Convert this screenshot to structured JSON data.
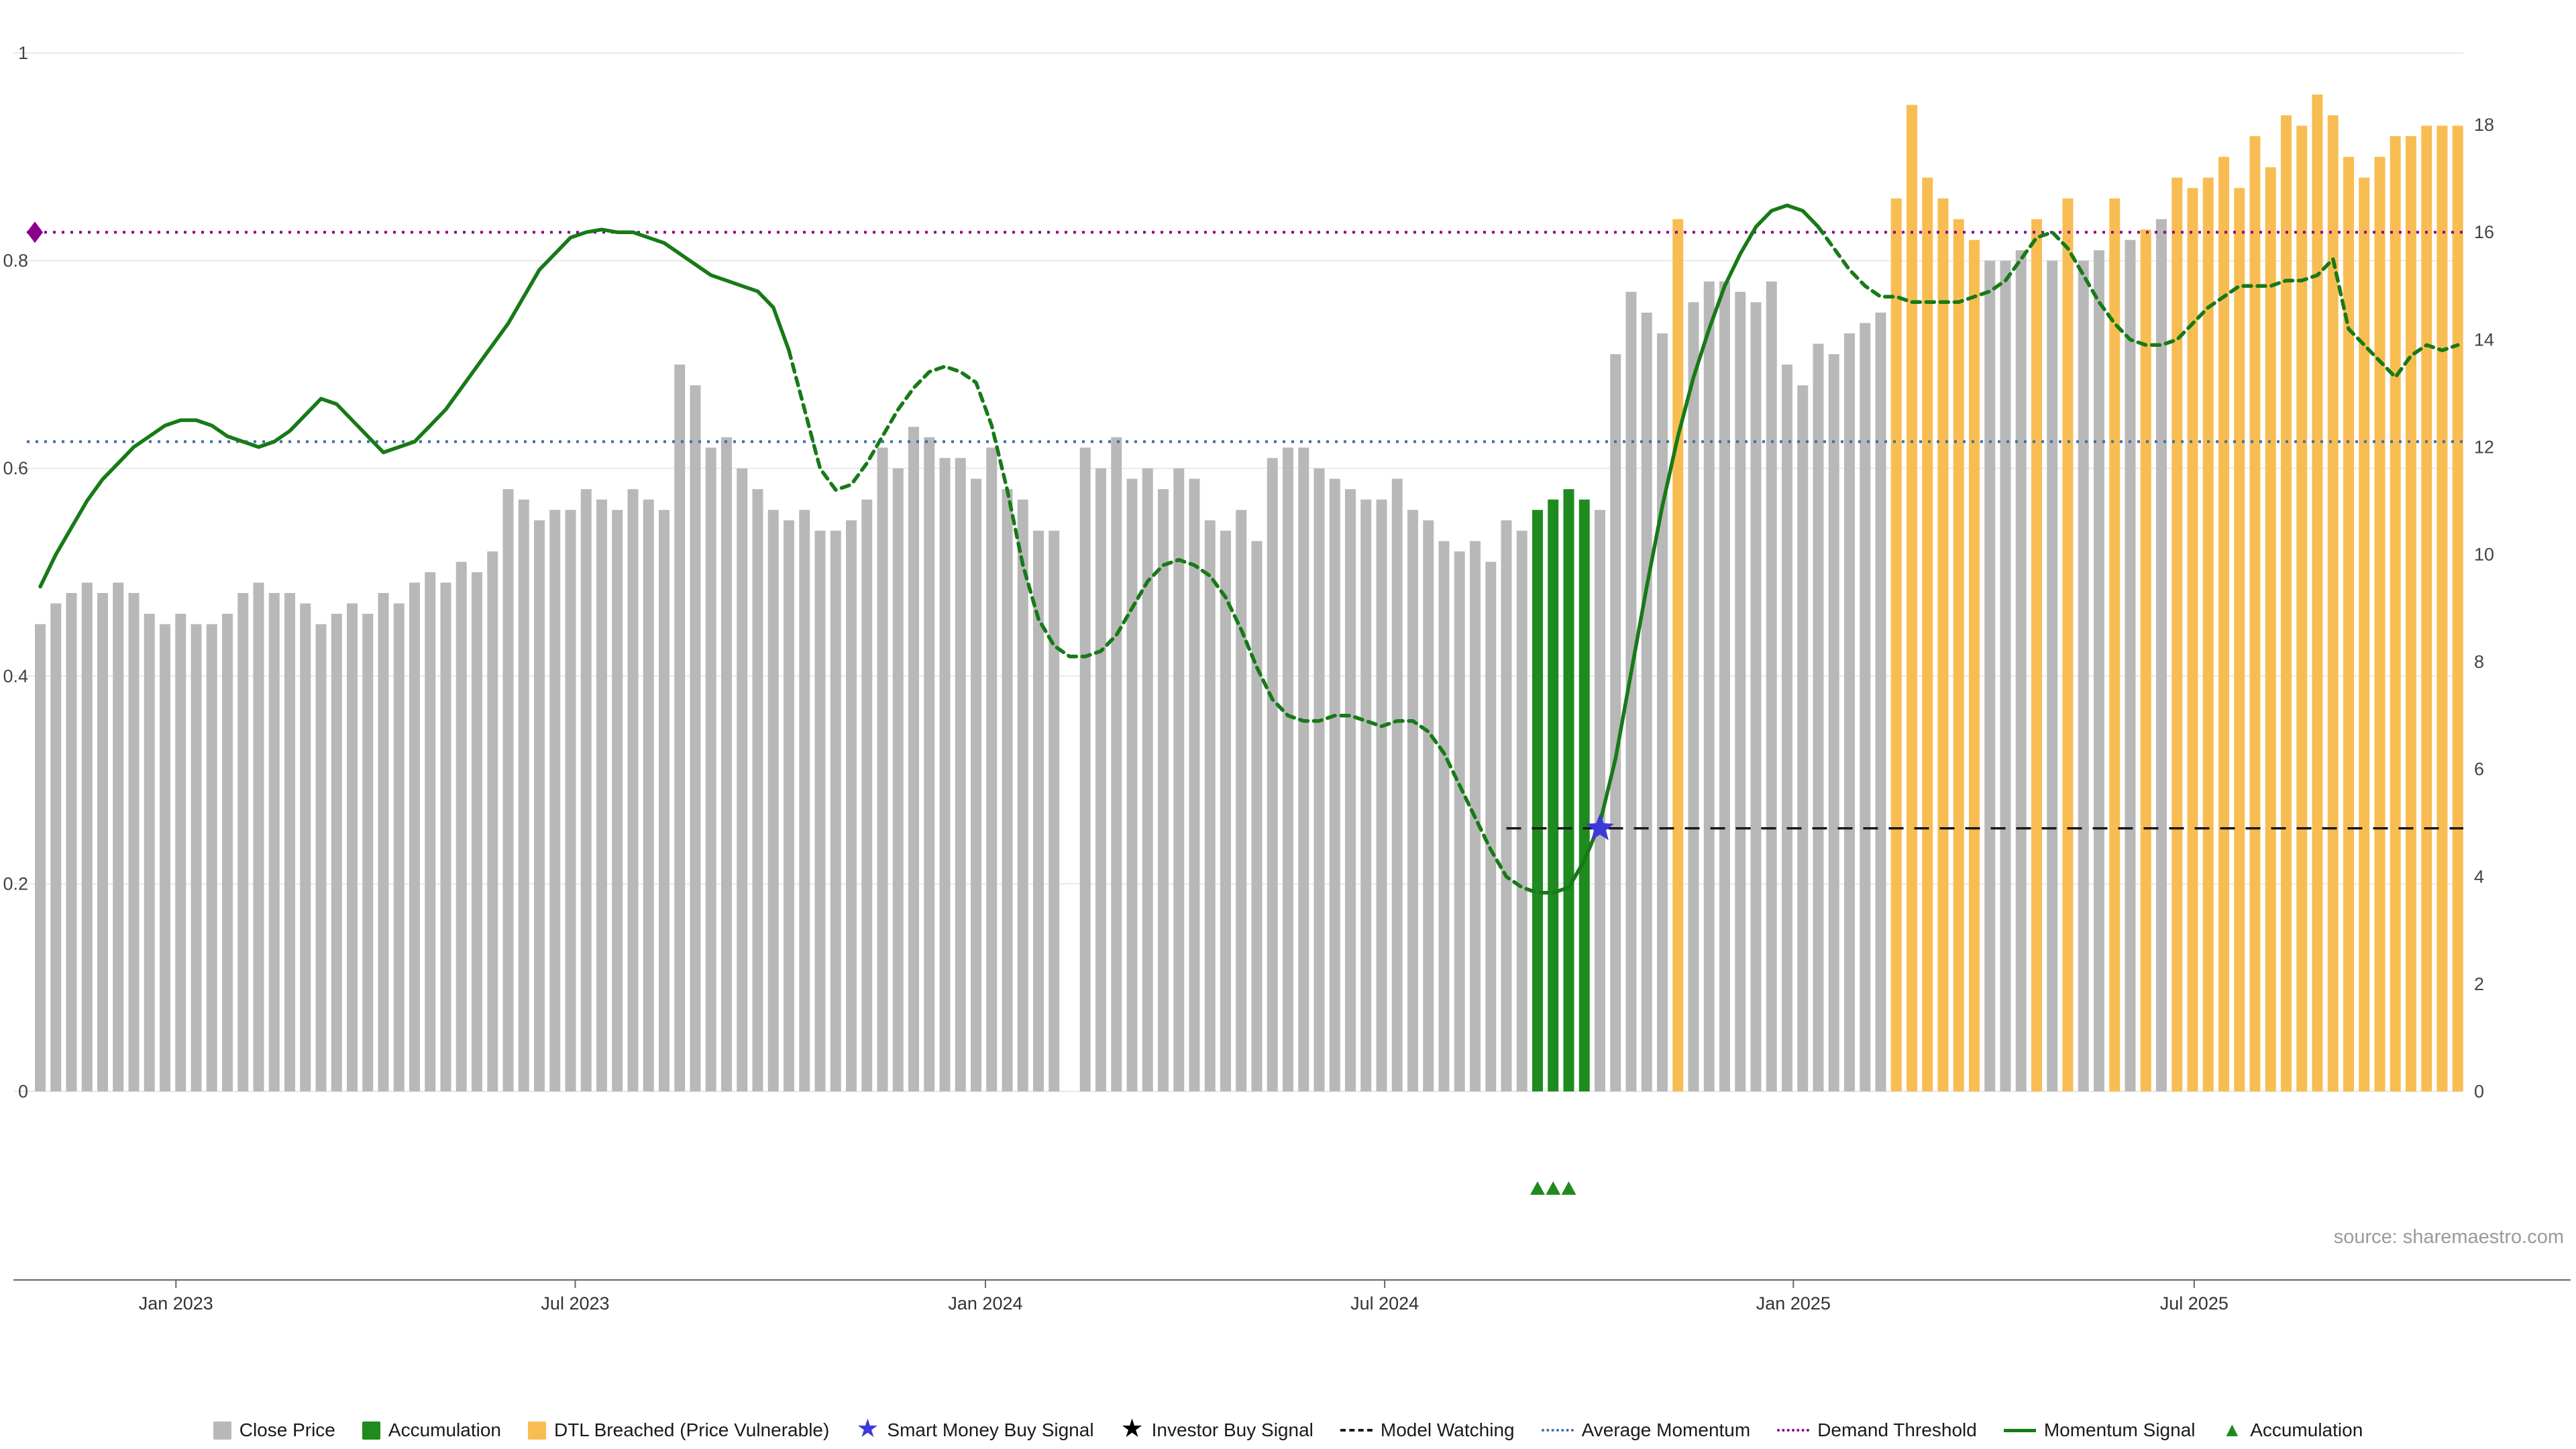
{
  "source": {
    "text": "source: sharemaestro.com"
  },
  "colors": {
    "close_price": "#b8b8b8",
    "accumulation": "#1f8b1f",
    "dtl_breached": "#f8bd52",
    "momentum": "#177a17",
    "average_momentum": "#3d6fa8",
    "demand_threshold": "#8b008b",
    "model_watching": "#1a1a1a",
    "smart_money_star": "#3a3ad9",
    "investor_star": "#000000",
    "accumulation_marker": "#1f8b1f",
    "grid": "#e9e9e9",
    "axis_text": "#444444"
  },
  "chart_data": {
    "type": "bar+line",
    "title": "",
    "frequency": "weekly",
    "start_period": "Nov 2022",
    "end_period": "Nov 2025",
    "x_axis": {
      "ticks": [
        {
          "label": "Jan 2023",
          "week_index": 8.7
        },
        {
          "label": "Jul 2023",
          "week_index": 34.3
        },
        {
          "label": "Jan 2024",
          "week_index": 60.6
        },
        {
          "label": "Jul 2024",
          "week_index": 86.2
        },
        {
          "label": "Jan 2025",
          "week_index": 112.4
        },
        {
          "label": "Jul 2025",
          "week_index": 138.1
        }
      ]
    },
    "left_axis": {
      "ticks": [
        0,
        0.2,
        0.4,
        0.6,
        0.8,
        1
      ],
      "range": [
        0,
        1.05
      ]
    },
    "right_axis": {
      "ticks": [
        0,
        2,
        4,
        6,
        8,
        10,
        12,
        14,
        16,
        18
      ],
      "range": [
        0,
        18.1
      ]
    },
    "bars": {
      "name": "Close Price",
      "axis": "left",
      "values": [
        0.45,
        0.47,
        0.48,
        0.49,
        0.48,
        0.49,
        0.48,
        0.46,
        0.45,
        0.46,
        0.45,
        0.45,
        0.46,
        0.48,
        0.49,
        0.48,
        0.48,
        0.47,
        0.45,
        0.46,
        0.47,
        0.46,
        0.48,
        0.47,
        0.49,
        0.5,
        0.49,
        0.51,
        0.5,
        0.52,
        0.58,
        0.57,
        0.55,
        0.56,
        0.56,
        0.58,
        0.57,
        0.56,
        0.58,
        0.57,
        0.56,
        0.7,
        0.68,
        0.62,
        0.63,
        0.6,
        0.58,
        0.56,
        0.55,
        0.56,
        0.54,
        0.54,
        0.55,
        0.57,
        0.62,
        0.6,
        0.64,
        0.63,
        0.61,
        0.61,
        0.59,
        0.62,
        0.58,
        0.57,
        0.54,
        0.54,
        0,
        0.62,
        0.6,
        0.63,
        0.59,
        0.6,
        0.58,
        0.6,
        0.59,
        0.55,
        0.54,
        0.56,
        0.53,
        0.61,
        0.62,
        0.62,
        0.6,
        0.59,
        0.58,
        0.57,
        0.57,
        0.59,
        0.56,
        0.55,
        0.53,
        0.52,
        0.53,
        0.51,
        0.55,
        0.54,
        0.56,
        0.57,
        0.58,
        0.57,
        0.56,
        0.71,
        0.77,
        0.75,
        0.73,
        0.84,
        0.76,
        0.78,
        0.78,
        0.77,
        0.76,
        0.78,
        0.7,
        0.68,
        0.72,
        0.71,
        0.73,
        0.74,
        0.75,
        0.86,
        0.95,
        0.88,
        0.86,
        0.84,
        0.82,
        0.8,
        0.8,
        0.81,
        0.84,
        0.8,
        0.86,
        0.8,
        0.81,
        0.86,
        0.82,
        0.83,
        0.84,
        0.88,
        0.87,
        0.88,
        0.9,
        0.87,
        0.92,
        0.89,
        0.94,
        0.93,
        0.96,
        0.94,
        0.9,
        0.88,
        0.9,
        0.92,
        0.92,
        0.93,
        0.93,
        0.93
      ],
      "state_runs": [
        [
          "c",
          66
        ],
        [
          "0",
          1
        ],
        [
          "c",
          29
        ],
        [
          "a",
          4
        ],
        [
          "c",
          5
        ],
        [
          "d",
          1
        ],
        [
          "c",
          13
        ],
        [
          "d",
          6
        ],
        [
          "c",
          3
        ],
        [
          "d",
          1
        ],
        [
          "c",
          1
        ],
        [
          "d",
          1
        ],
        [
          "c",
          2
        ],
        [
          "d",
          1
        ],
        [
          "c",
          1
        ],
        [
          "d",
          1
        ],
        [
          "c",
          1
        ],
        [
          "d",
          19
        ]
      ],
      "state_meaning": {
        "c": "Close Price",
        "a": "Accumulation",
        "d": "DTL Breached (Price Vulnerable)",
        "0": "missing week"
      }
    },
    "momentum_line": {
      "name": "Momentum Signal",
      "axis": "right",
      "values": [
        9.4,
        10.0,
        10.5,
        11.0,
        11.4,
        11.7,
        12.0,
        12.2,
        12.4,
        12.5,
        12.5,
        12.4,
        12.2,
        12.1,
        12.0,
        12.1,
        12.3,
        12.6,
        12.9,
        12.8,
        12.5,
        12.2,
        11.9,
        12.0,
        12.1,
        12.4,
        12.7,
        13.1,
        13.5,
        13.9,
        14.3,
        14.8,
        15.3,
        15.6,
        15.9,
        16.0,
        16.05,
        16.0,
        16.0,
        15.9,
        15.8,
        15.6,
        15.4,
        15.2,
        15.1,
        15.0,
        14.9,
        14.6,
        13.8,
        12.7,
        11.6,
        11.2,
        11.3,
        11.7,
        12.2,
        12.7,
        13.1,
        13.4,
        13.5,
        13.4,
        13.2,
        12.4,
        11.2,
        9.8,
        8.8,
        8.3,
        8.1,
        8.1,
        8.2,
        8.5,
        9.0,
        9.5,
        9.8,
        9.9,
        9.8,
        9.6,
        9.2,
        8.6,
        7.9,
        7.3,
        7.0,
        6.9,
        6.9,
        7.0,
        7.0,
        6.9,
        6.8,
        6.9,
        6.9,
        6.7,
        6.3,
        5.7,
        5.1,
        4.5,
        4.0,
        3.8,
        3.7,
        3.7,
        3.8,
        4.3,
        5.0,
        6.2,
        7.8,
        9.4,
        10.9,
        12.2,
        13.3,
        14.2,
        15.0,
        15.6,
        16.1,
        16.4,
        16.5,
        16.4,
        16.1,
        15.7,
        15.3,
        15.0,
        14.8,
        14.8,
        14.7,
        14.7,
        14.7,
        14.7,
        14.8,
        14.9,
        15.1,
        15.5,
        15.9,
        16.0,
        15.7,
        15.2,
        14.7,
        14.3,
        14.0,
        13.9,
        13.9,
        14.0,
        14.3,
        14.6,
        14.8,
        15.0,
        15.0,
        15.0,
        15.1,
        15.1,
        15.2,
        15.5,
        14.2,
        13.9,
        13.6,
        13.3,
        13.7,
        13.9,
        13.8,
        13.9
      ],
      "segments": [
        {
          "from": 0,
          "to": 48,
          "style": "solid"
        },
        {
          "from": 48,
          "to": 97,
          "style": "dashed"
        },
        {
          "from": 97,
          "to": 114,
          "style": "solid"
        },
        {
          "from": 114,
          "to": 155,
          "style": "dashed"
        }
      ]
    },
    "hlines": [
      {
        "key": "demand_threshold",
        "name": "Demand Threshold",
        "axis": "right",
        "value": 16,
        "style": "dotted",
        "from_week": 0,
        "to_week": 155,
        "start_marker": "diamond"
      },
      {
        "key": "average_momentum",
        "name": "Average Momentum",
        "axis": "right",
        "value": 12.1,
        "style": "dotted",
        "from_week": 0,
        "to_week": 155
      },
      {
        "key": "model_watching",
        "name": "Model Watching",
        "axis": "right",
        "value": 4.9,
        "style": "dashed",
        "from_week": 94,
        "to_week": 155
      }
    ],
    "markers": {
      "smart_money_buy_signal": {
        "shape": "star",
        "week_index": 100,
        "value": 4.9,
        "axis": "right"
      },
      "accumulation_triangles": {
        "shape": "triangle-up",
        "week_indices": [
          96,
          97,
          98
        ],
        "position": "below-axis"
      }
    }
  },
  "legend": {
    "items": [
      {
        "key": "close-price",
        "label": "Close Price",
        "swatch": "square",
        "color_key": "close_price"
      },
      {
        "key": "accumulation-bars",
        "label": "Accumulation",
        "swatch": "square",
        "color_key": "accumulation"
      },
      {
        "key": "dtl-breached",
        "label": "DTL Breached (Price Vulnerable)",
        "swatch": "square",
        "color_key": "dtl_breached"
      },
      {
        "key": "smart-money-buy-signal",
        "label": "Smart Money Buy Signal",
        "swatch": "star",
        "color_key": "smart_money_star"
      },
      {
        "key": "investor-buy-signal",
        "label": "Investor Buy Signal",
        "swatch": "star",
        "color_key": "investor_star"
      },
      {
        "key": "model-watching",
        "label": "Model Watching",
        "swatch": "line-dashed",
        "color_key": "model_watching"
      },
      {
        "key": "average-momentum",
        "label": "Average Momentum",
        "swatch": "line-dotted",
        "color_key": "average_momentum"
      },
      {
        "key": "demand-threshold",
        "label": "Demand Threshold",
        "swatch": "line-dotted",
        "color_key": "demand_threshold"
      },
      {
        "key": "momentum-signal",
        "label": "Momentum Signal",
        "swatch": "line-solid",
        "color_key": "momentum"
      },
      {
        "key": "accumulation-marker",
        "label": "Accumulation",
        "swatch": "triangle",
        "color_key": "accumulation_marker"
      }
    ]
  }
}
